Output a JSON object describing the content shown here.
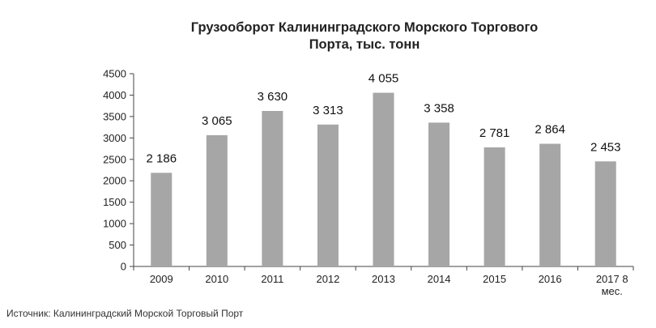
{
  "chart_data": {
    "type": "bar",
    "title_line1": "Грузооборот Калининградского Морского Торгового",
    "title_line2": "Порта, тыс. тонн",
    "categories": [
      "2009",
      "2010",
      "2011",
      "2012",
      "2013",
      "2014",
      "2015",
      "2016",
      "2017 8 мес."
    ],
    "values": [
      2186,
      3065,
      3630,
      3313,
      4055,
      3358,
      2781,
      2864,
      2453
    ],
    "value_labels": [
      "2 186",
      "3 065",
      "3 630",
      "3 313",
      "4 055",
      "3 358",
      "2 781",
      "2 864",
      "2 453"
    ],
    "yticks": [
      "0",
      "500",
      "1000",
      "1500",
      "2000",
      "2500",
      "3000",
      "3500",
      "4000",
      "4500"
    ],
    "ylim": [
      0,
      4500
    ],
    "bar_color": "#a6a6a6",
    "grid": false,
    "legend": "none"
  },
  "source": "Источник: Калининградский Морской Торговый Порт"
}
